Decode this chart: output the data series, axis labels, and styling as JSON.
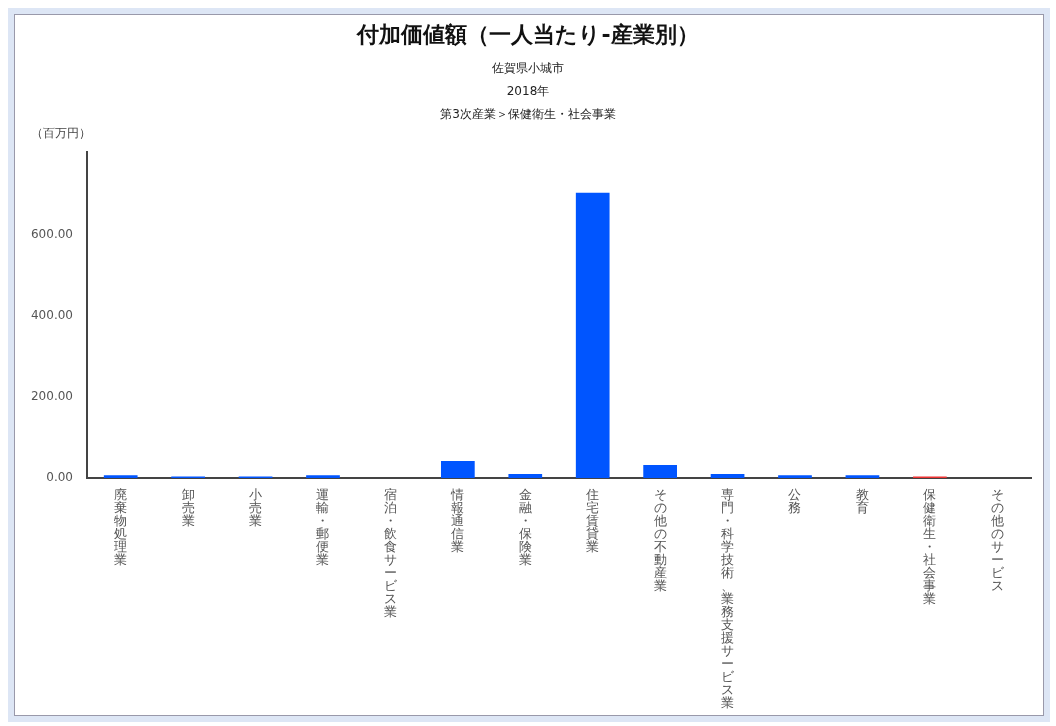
{
  "chart_data": {
    "type": "bar",
    "title": "付加価値額（一人当たり-産業別）",
    "subtitle": "佐賀県小城市",
    "annotations": [
      "2018年",
      "第3次産業＞保健衛生・社会事業"
    ],
    "ylabel": "（百万円）",
    "categories": [
      "廃棄物処理業",
      "卸売業",
      "小売業",
      "運輸・郵便業",
      "宿泊・飲食サービス業",
      "情報通信業",
      "金融・保険業",
      "住宅賃貸業",
      "その他の不動産業",
      "専門・科学技術、業務支援サービス業",
      "公務",
      "教育",
      "保健衛生・社会事業",
      "その他のサービス"
    ],
    "values": [
      7,
      4,
      4,
      7,
      0,
      42,
      10,
      704,
      32,
      10,
      7,
      7,
      4,
      0
    ],
    "colors": [
      "#0055ff",
      "#0055ff",
      "#0055ff",
      "#0055ff",
      "#0055ff",
      "#0055ff",
      "#0055ff",
      "#0055ff",
      "#0055ff",
      "#0055ff",
      "#0055ff",
      "#0055ff",
      "#ee3333",
      "#0055ff"
    ],
    "ylim": [
      0,
      805
    ],
    "yticks": [
      {
        "value": 0,
        "label": "0.00"
      },
      {
        "value": 200,
        "label": "200.00"
      },
      {
        "value": 400,
        "label": "400.00"
      },
      {
        "value": 600,
        "label": "600.00"
      }
    ],
    "grid": false,
    "legend": false
  }
}
